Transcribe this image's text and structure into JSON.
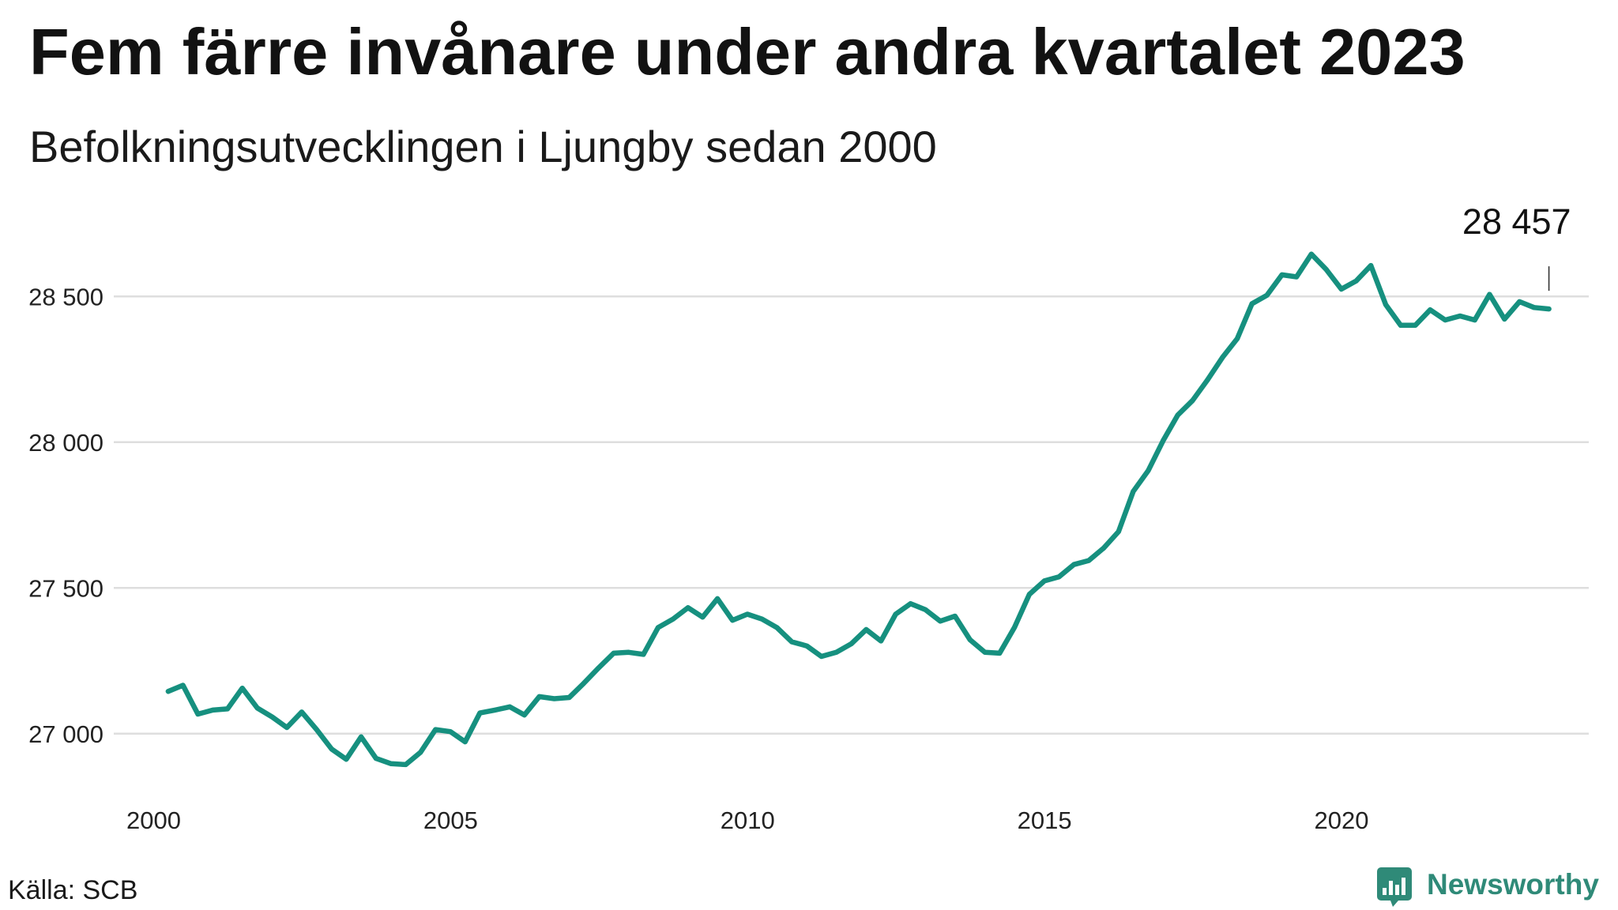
{
  "chart_data": {
    "type": "line",
    "title": "Fem färre invånare under andra kvartalet 2023",
    "subtitle": "Befolkningsutvecklingen i Ljungby sedan 2000",
    "xlabel": "",
    "ylabel": "",
    "x_ticks": [
      "2000",
      "2005",
      "2010",
      "2015",
      "2020"
    ],
    "y_ticks": [
      27000,
      27500,
      28000,
      28500
    ],
    "y_tick_labels": [
      "27 000",
      "27 500",
      "28 000",
      "28 500"
    ],
    "ylim": [
      26750,
      28750
    ],
    "xlim": [
      "1999-05-01",
      "2024-03-01"
    ],
    "grid": "horizontal",
    "legend": "none",
    "series": [
      {
        "color": "#16907f",
        "x": [
          "2000-03-31",
          "2000-06-30",
          "2000-09-30",
          "2000-12-31",
          "2001-03-31",
          "2001-06-30",
          "2001-09-30",
          "2001-12-31",
          "2002-03-31",
          "2002-06-30",
          "2002-09-30",
          "2002-12-31",
          "2003-03-31",
          "2003-06-30",
          "2003-09-30",
          "2003-12-31",
          "2004-03-31",
          "2004-06-30",
          "2004-09-30",
          "2004-12-31",
          "2005-03-31",
          "2005-06-30",
          "2005-09-30",
          "2005-12-31",
          "2006-03-31",
          "2006-06-30",
          "2006-09-30",
          "2006-12-31",
          "2007-03-31",
          "2007-06-30",
          "2007-09-30",
          "2007-12-31",
          "2008-03-31",
          "2008-06-30",
          "2008-09-30",
          "2008-12-31",
          "2009-03-31",
          "2009-06-30",
          "2009-09-30",
          "2009-12-31",
          "2010-03-31",
          "2010-06-30",
          "2010-09-30",
          "2010-12-31",
          "2011-03-31",
          "2011-06-30",
          "2011-09-30",
          "2011-12-31",
          "2012-03-31",
          "2012-06-30",
          "2012-09-30",
          "2012-12-31",
          "2013-03-31",
          "2013-06-30",
          "2013-09-30",
          "2013-12-31",
          "2014-03-31",
          "2014-06-30",
          "2014-09-30",
          "2014-12-31",
          "2015-03-31",
          "2015-06-30",
          "2015-09-30",
          "2015-12-31",
          "2016-03-31",
          "2016-06-30",
          "2016-09-30",
          "2016-12-31",
          "2017-03-31",
          "2017-06-30",
          "2017-09-30",
          "2017-12-31",
          "2018-03-31",
          "2018-06-30",
          "2018-09-30",
          "2018-12-31",
          "2019-03-31",
          "2019-06-30",
          "2019-09-30",
          "2019-12-31",
          "2020-03-31",
          "2020-06-30",
          "2020-09-30",
          "2020-12-31",
          "2021-03-31",
          "2021-06-30",
          "2021-09-30",
          "2021-12-31",
          "2022-03-31",
          "2022-06-30",
          "2022-09-30",
          "2022-12-31",
          "2023-03-31",
          "2023-06-30"
        ],
        "values": [
          27145,
          27166,
          27067,
          27081,
          27085,
          27156,
          27088,
          27057,
          27021,
          27074,
          27014,
          26947,
          26912,
          26989,
          26915,
          26897,
          26894,
          26936,
          27014,
          27007,
          26972,
          27071,
          27081,
          27092,
          27064,
          27127,
          27120,
          27124,
          27173,
          27226,
          27276,
          27279,
          27272,
          27364,
          27393,
          27432,
          27400,
          27463,
          27389,
          27410,
          27393,
          27364,
          27315,
          27301,
          27265,
          27279,
          27308,
          27357,
          27318,
          27410,
          27446,
          27425,
          27386,
          27403,
          27322,
          27279,
          27276,
          27364,
          27478,
          27524,
          27538,
          27580,
          27594,
          27637,
          27693,
          27831,
          27902,
          28005,
          28093,
          28143,
          28214,
          28291,
          28355,
          28475,
          28504,
          28574,
          28567,
          28645,
          28592,
          28525,
          28553,
          28606,
          28472,
          28401,
          28401,
          28454,
          28419,
          28433,
          28419,
          28507,
          28422,
          28482,
          28462,
          28457
        ]
      }
    ],
    "annotation": {
      "text": "28 457",
      "x": "2023-06-30",
      "value": 28457
    }
  },
  "source": "Källa: SCB",
  "brand": {
    "name": "Newsworthy",
    "color": "#2f8a78",
    "icon": "newsworthy-logo-icon"
  }
}
